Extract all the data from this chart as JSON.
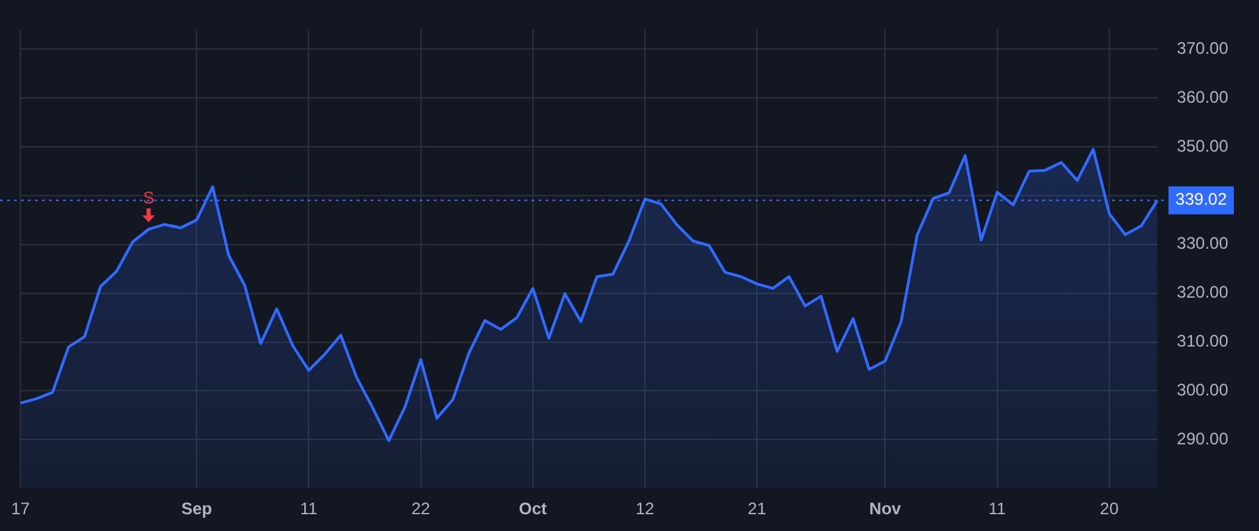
{
  "chart_data": {
    "type": "area",
    "categories": [
      "17",
      null,
      null,
      null,
      null,
      null,
      null,
      null,
      null,
      null,
      null,
      "Sep",
      null,
      null,
      null,
      null,
      null,
      null,
      "11",
      null,
      null,
      null,
      null,
      null,
      null,
      "22",
      null,
      null,
      null,
      null,
      null,
      null,
      "Oct",
      null,
      null,
      null,
      null,
      null,
      null,
      "12",
      null,
      null,
      null,
      null,
      null,
      null,
      "21",
      null,
      null,
      null,
      null,
      null,
      null,
      null,
      "Nov",
      null,
      null,
      null,
      null,
      null,
      null,
      "11",
      null,
      null,
      null,
      null,
      null,
      null,
      "20",
      null,
      null,
      null
    ],
    "series": [
      {
        "color": "#2f6bff",
        "values": [
          297.5,
          298.4,
          299.7,
          309.0,
          311.1,
          321.4,
          324.5,
          330.5,
          333.1,
          334.1,
          333.4,
          335.0,
          341.8,
          327.8,
          321.6,
          309.7,
          316.8,
          309.3,
          304.2,
          307.5,
          311.4,
          302.7,
          296.5,
          289.8,
          296.6,
          306.4,
          294.4,
          298.2,
          307.7,
          314.4,
          312.6,
          315.0,
          321.0,
          310.8,
          319.9,
          314.2,
          323.4,
          323.9,
          330.7,
          339.3,
          338.3,
          334.0,
          330.7,
          329.8,
          324.3,
          323.4,
          321.9,
          321.0,
          323.4,
          317.4,
          319.4,
          308.1,
          314.8,
          304.4,
          306.1,
          314.2,
          331.9,
          339.4,
          340.6,
          348.2,
          330.9,
          340.7,
          338.1,
          345.0,
          345.2,
          346.8,
          343.1,
          349.5,
          336.3,
          332.0,
          333.8,
          339.0
        ]
      }
    ],
    "ylim": [
      280,
      374
    ],
    "yticks": [
      {
        "value": 290,
        "label": "290.00"
      },
      {
        "value": 300,
        "label": "300.00"
      },
      {
        "value": 310,
        "label": "310.00"
      },
      {
        "value": 320,
        "label": "320.00"
      },
      {
        "value": 330,
        "label": "330.00"
      },
      {
        "value": 340,
        "label": null
      },
      {
        "value": 350,
        "label": "350.00"
      },
      {
        "value": 360,
        "label": "360.00"
      },
      {
        "value": 370,
        "label": "370.00"
      }
    ],
    "ref_lines": [
      {
        "axis": "y",
        "value": 339.02,
        "label": "339.02",
        "color": "#2f6bff",
        "line_style": "dotted"
      }
    ],
    "annotations": [
      {
        "text": "S",
        "y": 333.1
      }
    ],
    "grid": true,
    "legend": false,
    "marker": "none",
    "line_style": "solid"
  }
}
